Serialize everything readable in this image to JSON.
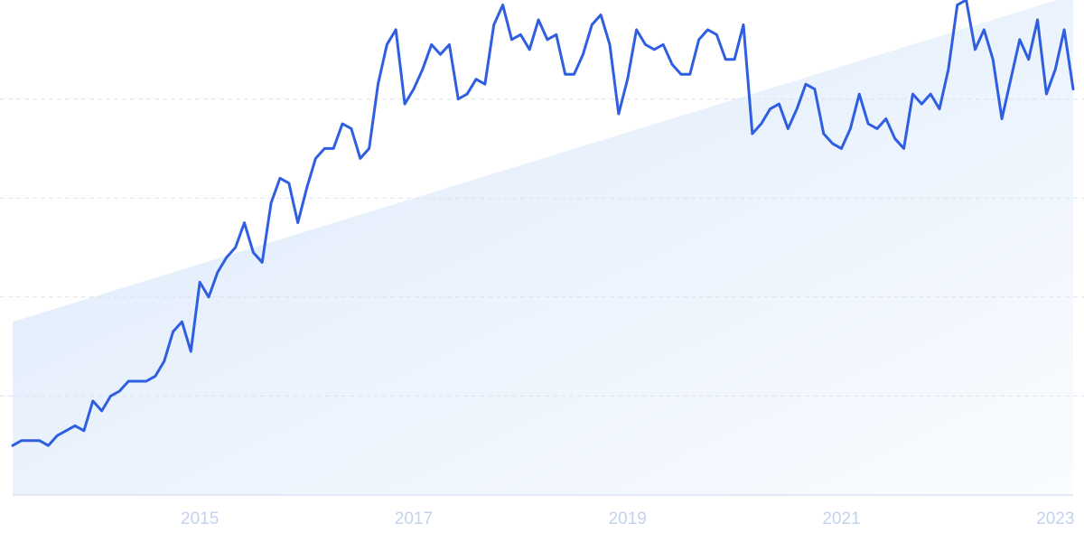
{
  "chart_data": {
    "type": "line",
    "categories": [
      null,
      null,
      null,
      null,
      null,
      null,
      null,
      null,
      null,
      null,
      null,
      null,
      null,
      null,
      null,
      null,
      null,
      null,
      null,
      null,
      null,
      "2015",
      null,
      null,
      null,
      null,
      null,
      null,
      null,
      null,
      null,
      null,
      null,
      null,
      null,
      null,
      null,
      null,
      null,
      null,
      null,
      null,
      null,
      null,
      null,
      "2017",
      null,
      null,
      null,
      null,
      null,
      null,
      null,
      null,
      null,
      null,
      null,
      null,
      null,
      null,
      null,
      null,
      null,
      null,
      null,
      null,
      null,
      null,
      null,
      "2019",
      null,
      null,
      null,
      null,
      null,
      null,
      null,
      null,
      null,
      null,
      null,
      null,
      null,
      null,
      null,
      null,
      null,
      null,
      null,
      null,
      null,
      null,
      null,
      "2021",
      null,
      null,
      null,
      null,
      null,
      null,
      null,
      null,
      null,
      null,
      null,
      null,
      null,
      null,
      null,
      null,
      null,
      null,
      null,
      null,
      null,
      null,
      null,
      "2023",
      null,
      null
    ],
    "values": [
      10,
      11,
      11,
      11,
      10,
      12,
      13,
      14,
      13,
      19,
      17,
      20,
      21,
      23,
      23,
      23,
      24,
      27,
      33,
      35,
      29,
      43,
      40,
      45,
      48,
      50,
      55,
      49,
      47,
      59,
      64,
      63,
      55,
      62,
      68,
      70,
      70,
      75,
      74,
      68,
      70,
      83,
      91,
      94,
      79,
      82,
      86,
      91,
      89,
      91,
      80,
      81,
      84,
      83,
      95,
      99,
      92,
      93,
      90,
      96,
      92,
      93,
      85,
      85,
      89,
      95,
      97,
      91,
      77,
      84,
      94,
      91,
      90,
      91,
      87,
      85,
      85,
      92,
      94,
      93,
      88,
      88,
      95,
      73,
      75,
      78,
      79,
      74,
      78,
      83,
      82,
      73,
      71,
      70,
      74,
      81,
      75,
      74,
      76,
      72,
      70,
      81,
      79,
      81,
      78,
      86,
      99,
      100,
      90,
      94,
      88,
      76,
      84,
      92,
      88,
      96,
      81,
      86,
      94,
      82
    ],
    "color": "#2f5fe0",
    "trend": [
      35,
      101
    ],
    "trend_color": "#dbe9fb",
    "ylim": [
      0,
      100
    ],
    "yticks": [
      0,
      20,
      40,
      60,
      80
    ],
    "grid": true
  }
}
